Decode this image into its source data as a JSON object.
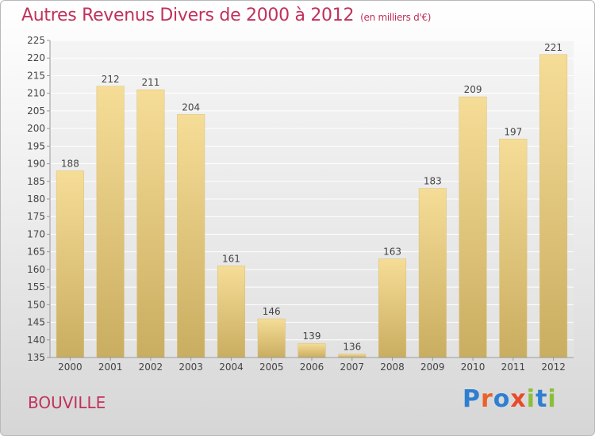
{
  "title": "Autres Revenus Divers de 2000 à 2012",
  "subtitle": "(en milliers d'€)",
  "city": "BOUVILLE",
  "logo": {
    "letters": [
      {
        "ch": "P",
        "color": "#2f7fd0"
      },
      {
        "ch": "r",
        "color": "#e8622a"
      },
      {
        "ch": "o",
        "color": "#2f7fd0"
      },
      {
        "ch": "x",
        "color": "#e84a2a"
      },
      {
        "ch": "i",
        "color": "#8bbf3a"
      },
      {
        "ch": "t",
        "color": "#2f7fd0"
      },
      {
        "ch": "i",
        "color": "#8bbf3a"
      }
    ]
  },
  "chart_data": {
    "type": "bar",
    "categories": [
      "2000",
      "2001",
      "2002",
      "2003",
      "2004",
      "2005",
      "2006",
      "2007",
      "2008",
      "2009",
      "2010",
      "2011",
      "2012"
    ],
    "values": [
      188,
      212,
      211,
      204,
      161,
      146,
      139,
      136,
      163,
      183,
      209,
      197,
      221
    ],
    "ylim": [
      135,
      225
    ],
    "yticks": [
      135,
      140,
      145,
      150,
      155,
      160,
      165,
      170,
      175,
      180,
      185,
      190,
      195,
      200,
      205,
      210,
      215,
      220,
      225
    ],
    "grid": true,
    "bar_color": "#e8cf85"
  }
}
